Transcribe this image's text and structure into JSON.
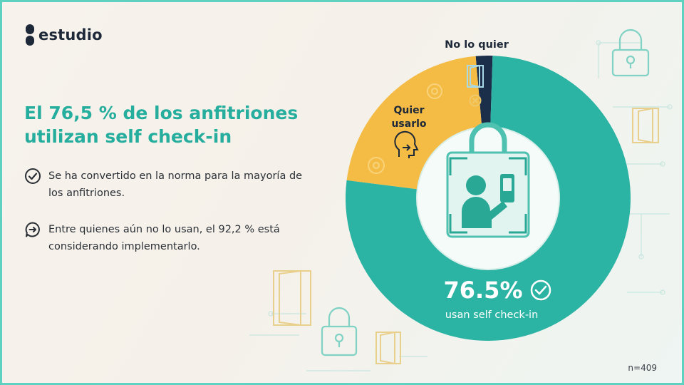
{
  "brand": {
    "name": "estudio"
  },
  "headline": "El 76,5 % de los anfitriones utilizan self check-in",
  "bullets": [
    {
      "icon": "check-circle-icon",
      "text": "Se ha convertido en la norma para la mayoría de los anfitriones."
    },
    {
      "icon": "arrow-chat-icon",
      "text": "Entre quienes aún no lo usan, el 92,2 % está considerando implementarlo."
    }
  ],
  "footnote": "n=409",
  "colors": {
    "teal": "#2bb3a3",
    "yellow": "#f4bc45",
    "navy": "#1c2f4a",
    "accent_text": "#25ad9d"
  },
  "chart_data": {
    "type": "pie",
    "style": "donut",
    "title": "",
    "categories": [
      "usan self check-in",
      "Quier usarlo",
      "No lo quier"
    ],
    "values": [
      76.5,
      21.6,
      1.9
    ],
    "unit": "%",
    "labels": {
      "main_value": "76.5%",
      "main_caption": "usan self check-in",
      "want": "Quier\nusarlo",
      "dont_want": "No lo quier"
    },
    "colors": [
      "#2bb3a3",
      "#f4bc45",
      "#1c2f4a"
    ]
  }
}
